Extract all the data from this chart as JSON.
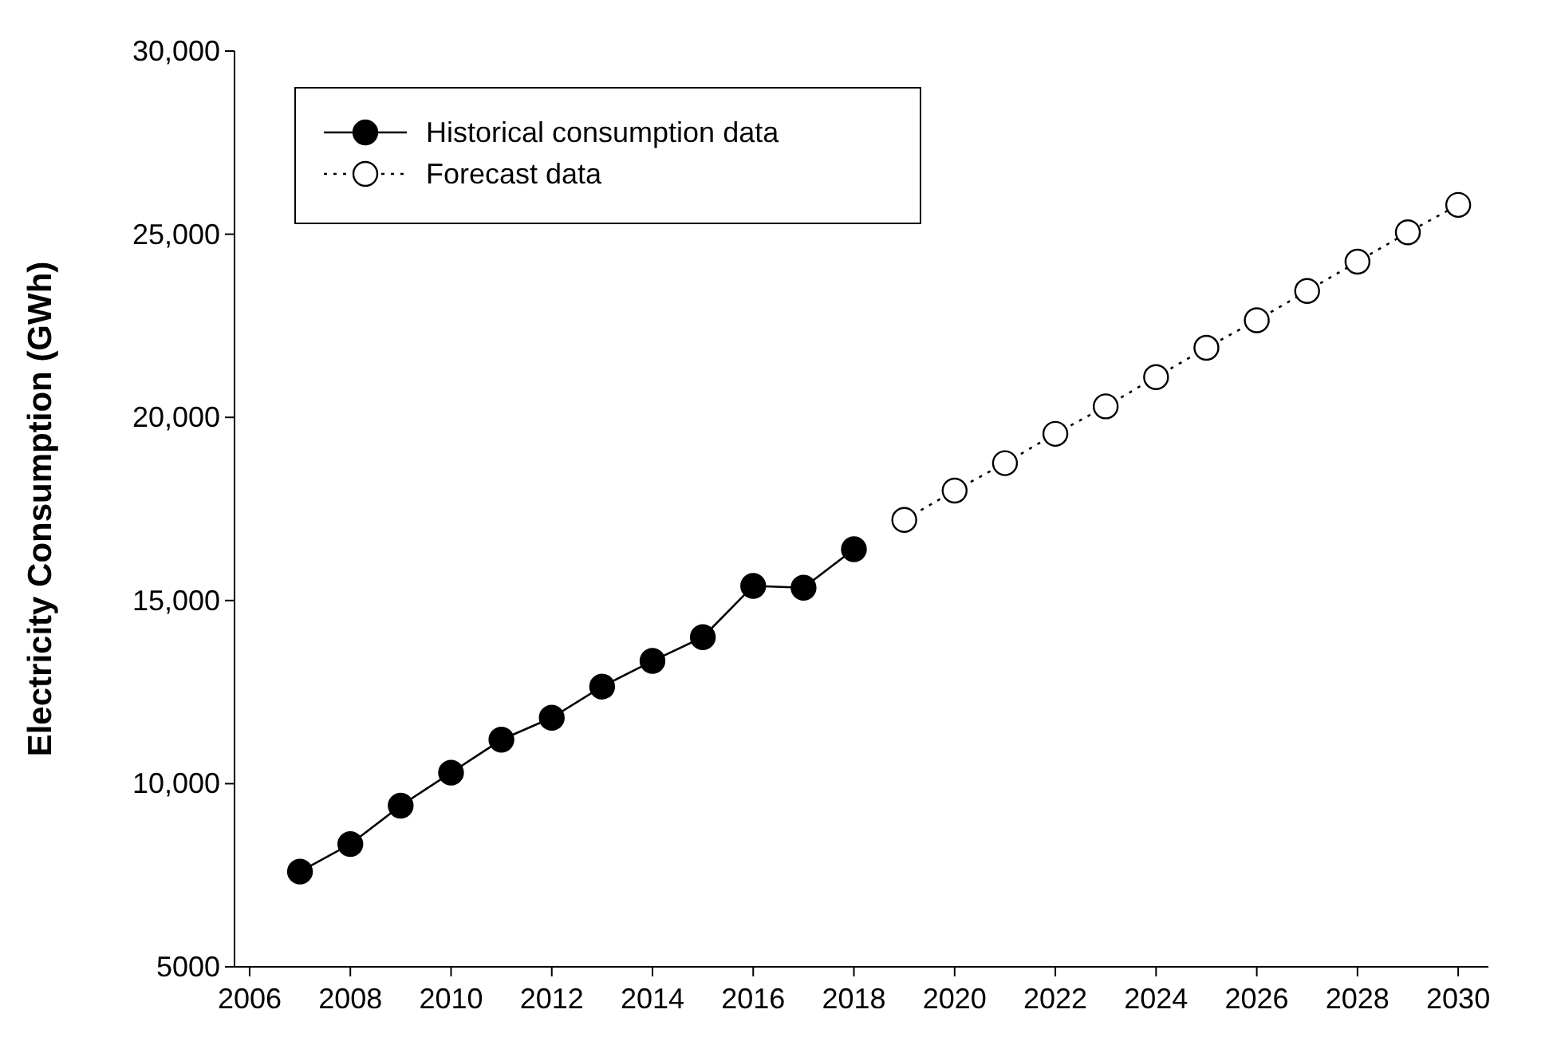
{
  "chart_data": {
    "type": "line",
    "ylabel": "Electricity Consumption (GWh)",
    "xlim": [
      2005.7,
      2030.6
    ],
    "xticks": [
      2006,
      2008,
      2010,
      2012,
      2014,
      2016,
      2018,
      2020,
      2022,
      2024,
      2026,
      2028,
      2030
    ],
    "ylim": [
      5000,
      30000
    ],
    "yticks": [
      5000,
      {
        "value": 10000,
        "label": "10,000"
      },
      {
        "value": 15000,
        "label": "15,000"
      },
      {
        "value": 20000,
        "label": "20,000"
      },
      {
        "value": 25000,
        "label": "25,000"
      },
      {
        "value": 30000,
        "label": "30,000"
      }
    ],
    "legend": "top left",
    "marker": "circle",
    "series": [
      {
        "name": "Historical consumption data",
        "color": "#000000",
        "line_style": "solid",
        "x": [
          2007,
          2008,
          2009,
          2010,
          2011,
          2012,
          2013,
          2014,
          2015,
          2016,
          2017,
          2018
        ],
        "values": [
          7600,
          8350,
          9400,
          10300,
          11200,
          11800,
          12650,
          13350,
          14000,
          15400,
          15350,
          16400
        ]
      },
      {
        "name": "Forecast data",
        "color": "#000000",
        "line_style": "dotted",
        "x": [
          2019,
          2020,
          2021,
          2022,
          2023,
          2024,
          2025,
          2026,
          2027,
          2028,
          2029,
          2030
        ],
        "values": [
          17200,
          18000,
          18750,
          19550,
          20300,
          21100,
          21900,
          22650,
          23450,
          24250,
          25050,
          25800
        ]
      }
    ]
  }
}
